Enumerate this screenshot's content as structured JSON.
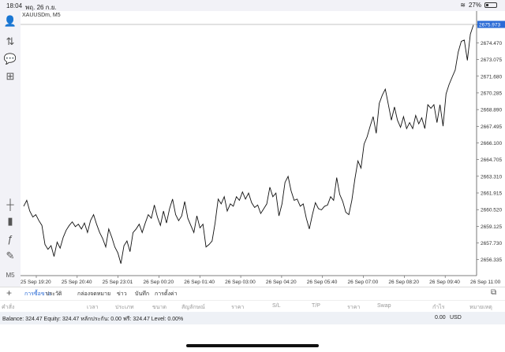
{
  "status": {
    "time": "18:04",
    "date": "พฤ. 26 ก.ย.",
    "battery": "27%",
    "battery_level": 0.27
  },
  "toolbar": {
    "items": [
      {
        "name": "account-icon",
        "glyph": "👤"
      },
      {
        "name": "trade-icon",
        "glyph": "⇅"
      },
      {
        "name": "chat-icon",
        "glyph": "💬"
      },
      {
        "name": "add-indicator-icon",
        "glyph": "⊞"
      },
      {
        "name": "crosshair-icon",
        "glyph": "┼"
      },
      {
        "name": "candles-icon",
        "glyph": "▮"
      },
      {
        "name": "function-icon",
        "glyph": "ƒ"
      },
      {
        "name": "objects-icon",
        "glyph": "✎"
      },
      {
        "name": "timeframe-label",
        "glyph": "M5"
      }
    ]
  },
  "chart": {
    "symbol_label": "XAUUSDm, M5",
    "current_price": "2675.973",
    "accent": "#2a6bd6"
  },
  "chart_data": {
    "type": "line",
    "title": "",
    "xlabel": "",
    "ylabel": "",
    "ylim": [
      2655.0,
      2677.0
    ],
    "x_ticks": [
      "25 Sep 19:20",
      "25 Sep 20:40",
      "25 Sep 23:01",
      "26 Sep 00:20",
      "26 Sep 01:40",
      "26 Sep 03:00",
      "26 Sep 04:20",
      "26 Sep 05:40",
      "26 Sep 07:00",
      "26 Sep 08:20",
      "26 Sep 09:40",
      "26 Sep 11:00"
    ],
    "y_ticks": [
      "2675.973",
      "2674.470",
      "2673.075",
      "2671.680",
      "2670.285",
      "2668.890",
      "2667.495",
      "2666.100",
      "2664.705",
      "2663.310",
      "2661.915",
      "2660.520",
      "2659.125",
      "2657.730",
      "2656.335"
    ],
    "y_tick_values": [
      2675.973,
      2674.47,
      2673.075,
      2671.68,
      2670.285,
      2668.89,
      2667.495,
      2666.1,
      2664.705,
      2663.31,
      2661.915,
      2660.52,
      2659.125,
      2657.73,
      2656.335
    ],
    "series": [
      {
        "values": [
          2660.8,
          2661.3,
          2660.4,
          2659.9,
          2660.1,
          2659.6,
          2659.2,
          2657.6,
          2657.2,
          2657.5,
          2656.6,
          2657.8,
          2657.3,
          2658.2,
          2658.8,
          2659.2,
          2659.5,
          2659.1,
          2659.3,
          2658.9,
          2659.4,
          2658.6,
          2659.6,
          2660.1,
          2659.3,
          2658.6,
          2658.1,
          2657.4,
          2658.9,
          2658.2,
          2657.4,
          2656.9,
          2656.0,
          2657.5,
          2657.9,
          2657.0,
          2658.6,
          2658.9,
          2659.3,
          2658.6,
          2659.4,
          2660.1,
          2659.8,
          2660.9,
          2659.9,
          2659.2,
          2660.4,
          2659.4,
          2660.6,
          2661.4,
          2660.1,
          2659.6,
          2660.0,
          2661.2,
          2659.8,
          2659.2,
          2658.6,
          2660.0,
          2659.0,
          2659.3,
          2657.4,
          2657.6,
          2657.9,
          2659.4,
          2661.4,
          2661.0,
          2661.6,
          2660.4,
          2661.0,
          2660.8,
          2661.6,
          2661.3,
          2662.0,
          2661.4,
          2661.9,
          2661.1,
          2660.7,
          2660.9,
          2660.2,
          2660.6,
          2661.0,
          2662.4,
          2661.6,
          2661.9,
          2660.0,
          2661.0,
          2662.8,
          2663.3,
          2662.1,
          2661.3,
          2661.4,
          2660.8,
          2661.0,
          2659.8,
          2658.9,
          2660.1,
          2661.1,
          2660.6,
          2660.5,
          2660.8,
          2660.9,
          2661.6,
          2661.3,
          2663.2,
          2661.8,
          2661.2,
          2660.3,
          2660.1,
          2661.3,
          2663.1,
          2664.6,
          2664.0,
          2666.0,
          2666.6,
          2667.5,
          2668.3,
          2666.9,
          2669.4,
          2670.1,
          2670.6,
          2669.3,
          2668.0,
          2669.1,
          2668.0,
          2667.4,
          2668.3,
          2667.3,
          2667.8,
          2667.3,
          2668.4,
          2667.7,
          2668.2,
          2667.3,
          2669.3,
          2669.0,
          2669.3,
          2667.8,
          2669.3,
          2667.5,
          2670.2,
          2671.0,
          2671.6,
          2672.2,
          2673.7,
          2674.6,
          2674.7,
          2673.0,
          2675.2,
          2675.97
        ]
      }
    ]
  },
  "tabs": [
    {
      "name": "tab-trade",
      "label": "การซื้อขาย",
      "active": true
    },
    {
      "name": "tab-history",
      "label": "ประวัติ",
      "active": false
    },
    {
      "name": "tab-mailbox",
      "label": "กล่องจดหมาย",
      "active": false
    },
    {
      "name": "tab-news",
      "label": "ข่าว",
      "active": false
    },
    {
      "name": "tab-journal",
      "label": "บันทึก",
      "active": false
    },
    {
      "name": "tab-settings",
      "label": "การตั้งค่า",
      "active": false
    }
  ],
  "columns": [
    "คำสั่ง",
    "เวลา",
    "ประเภท",
    "ขนาด",
    "สัญลักษณ์",
    "ราคา",
    "S/L",
    "T/P",
    "ราคา",
    "Swap",
    "กำไร",
    "หมายเหตุ"
  ],
  "balance": {
    "text": "Balance: 324.47 Equity: 324.47 หลักประกัน: 0.00 ฟรี: 324.47 Level: 0.00%",
    "amount": "0.00",
    "currency": "USD"
  }
}
